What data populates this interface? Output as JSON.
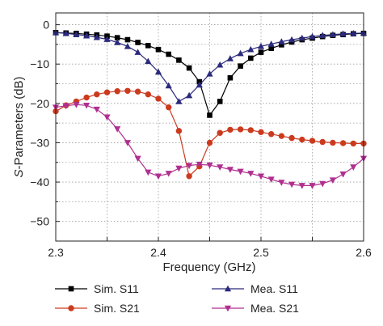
{
  "chart_data": {
    "type": "line",
    "xlabel": "Frequency (GHz)",
    "ylabel_prefix": "S",
    "ylabel_rest": "-Parameters (dB)",
    "xlim": [
      2.3,
      2.6
    ],
    "ylim": [
      -55,
      3
    ],
    "xticks": [
      2.3,
      2.35,
      2.4,
      2.45,
      2.5,
      2.55,
      2.6
    ],
    "xtick_labels": [
      "2.3",
      "",
      "2.4",
      "",
      "2.5",
      "",
      "2.6"
    ],
    "yticks": [
      0,
      -10,
      -20,
      -30,
      -40,
      -50
    ],
    "ytick_labels": [
      "0",
      "−10",
      "−20",
      "−30",
      "−40",
      "−50"
    ],
    "grid": "dotted",
    "legend_position": "bottom",
    "series": [
      {
        "name": "Sim. S11",
        "color": "#000000",
        "marker": "square",
        "x": [
          2.3,
          2.31,
          2.32,
          2.33,
          2.34,
          2.35,
          2.36,
          2.37,
          2.38,
          2.39,
          2.4,
          2.41,
          2.42,
          2.43,
          2.44,
          2.45,
          2.46,
          2.47,
          2.48,
          2.49,
          2.5,
          2.51,
          2.52,
          2.53,
          2.54,
          2.55,
          2.56,
          2.57,
          2.58,
          2.59,
          2.6
        ],
        "y": [
          -2,
          -2.1,
          -2.2,
          -2.4,
          -2.6,
          -2.9,
          -3.3,
          -3.8,
          -4.5,
          -5.3,
          -6.3,
          -7.5,
          -9,
          -11,
          -14.5,
          -23,
          -19.5,
          -13.5,
          -10.5,
          -8.5,
          -7,
          -6,
          -5.1,
          -4.4,
          -3.8,
          -3.4,
          -3,
          -2.7,
          -2.5,
          -2.3,
          -2.2
        ]
      },
      {
        "name": "Mea. S11",
        "color": "#2b2a7c",
        "marker": "triangle-up",
        "x": [
          2.3,
          2.31,
          2.32,
          2.33,
          2.34,
          2.35,
          2.36,
          2.37,
          2.38,
          2.39,
          2.4,
          2.41,
          2.42,
          2.43,
          2.44,
          2.45,
          2.46,
          2.47,
          2.48,
          2.49,
          2.5,
          2.51,
          2.52,
          2.53,
          2.54,
          2.55,
          2.56,
          2.57,
          2.58,
          2.59,
          2.6
        ],
        "y": [
          -2,
          -2.2,
          -2.5,
          -2.8,
          -3.2,
          -3.7,
          -4.5,
          -5.5,
          -7,
          -9.3,
          -12,
          -15.5,
          -19.5,
          -18,
          -15.3,
          -12.5,
          -10.2,
          -8.6,
          -7.3,
          -6.3,
          -5.5,
          -4.9,
          -4.3,
          -3.8,
          -3.4,
          -3,
          -2.7,
          -2.5,
          -2.3,
          -2.2,
          -2.1
        ]
      },
      {
        "name": "Sim. S21",
        "color": "#cc3a1e",
        "marker": "circle",
        "x": [
          2.3,
          2.31,
          2.32,
          2.33,
          2.34,
          2.35,
          2.36,
          2.37,
          2.38,
          2.39,
          2.4,
          2.41,
          2.42,
          2.43,
          2.44,
          2.45,
          2.46,
          2.47,
          2.48,
          2.49,
          2.5,
          2.51,
          2.52,
          2.53,
          2.54,
          2.55,
          2.56,
          2.57,
          2.58,
          2.59,
          2.6
        ],
        "y": [
          -22,
          -20.5,
          -19.5,
          -18.5,
          -17.7,
          -17.2,
          -16.9,
          -16.8,
          -17,
          -17.7,
          -18.8,
          -21,
          -27,
          -38.5,
          -36,
          -30,
          -27.5,
          -26.7,
          -26.6,
          -26.8,
          -27.3,
          -27.8,
          -28.3,
          -28.8,
          -29.2,
          -29.5,
          -29.8,
          -30,
          -30.1,
          -30.2,
          -30.2
        ]
      },
      {
        "name": "Mea. S21",
        "color": "#b02f8f",
        "marker": "triangle-down",
        "x": [
          2.3,
          2.31,
          2.32,
          2.33,
          2.34,
          2.35,
          2.36,
          2.37,
          2.38,
          2.39,
          2.4,
          2.41,
          2.42,
          2.43,
          2.44,
          2.45,
          2.46,
          2.47,
          2.48,
          2.49,
          2.5,
          2.51,
          2.52,
          2.53,
          2.54,
          2.55,
          2.56,
          2.57,
          2.58,
          2.59,
          2.6
        ],
        "y": [
          -21,
          -20.6,
          -20.3,
          -20.5,
          -21.5,
          -23.5,
          -26.5,
          -30,
          -34,
          -37.5,
          -38.5,
          -37.8,
          -36.5,
          -35.8,
          -35.5,
          -35.7,
          -36.2,
          -36.8,
          -37.3,
          -37.8,
          -38.5,
          -39.3,
          -40.1,
          -40.6,
          -40.9,
          -40.9,
          -40.4,
          -39.5,
          -38,
          -36.2,
          -34
        ]
      }
    ],
    "legend": [
      {
        "label": "Sim. S11"
      },
      {
        "label": "Mea. S11"
      },
      {
        "label": "Sim. S21"
      },
      {
        "label": "Mea. S21"
      }
    ]
  }
}
